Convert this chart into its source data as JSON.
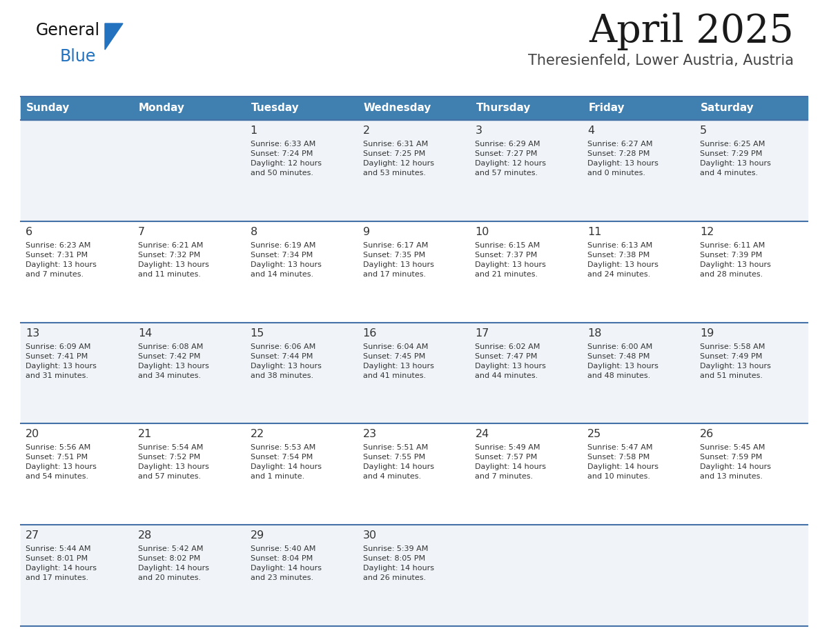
{
  "title": "April 2025",
  "subtitle": "Theresienfeld, Lower Austria, Austria",
  "header_bg": "#4080b0",
  "header_text": "#ffffff",
  "days_of_week": [
    "Sunday",
    "Monday",
    "Tuesday",
    "Wednesday",
    "Thursday",
    "Friday",
    "Saturday"
  ],
  "row_bg_odd": "#f0f4f8",
  "row_bg_even": "#ffffff",
  "divider_color": "#4472a8",
  "text_color": "#333333",
  "logo_triangle_color": "#2272c0",
  "calendar": [
    [
      {
        "day": "",
        "info": ""
      },
      {
        "day": "",
        "info": ""
      },
      {
        "day": "1",
        "info": "Sunrise: 6:33 AM\nSunset: 7:24 PM\nDaylight: 12 hours\nand 50 minutes."
      },
      {
        "day": "2",
        "info": "Sunrise: 6:31 AM\nSunset: 7:25 PM\nDaylight: 12 hours\nand 53 minutes."
      },
      {
        "day": "3",
        "info": "Sunrise: 6:29 AM\nSunset: 7:27 PM\nDaylight: 12 hours\nand 57 minutes."
      },
      {
        "day": "4",
        "info": "Sunrise: 6:27 AM\nSunset: 7:28 PM\nDaylight: 13 hours\nand 0 minutes."
      },
      {
        "day": "5",
        "info": "Sunrise: 6:25 AM\nSunset: 7:29 PM\nDaylight: 13 hours\nand 4 minutes."
      }
    ],
    [
      {
        "day": "6",
        "info": "Sunrise: 6:23 AM\nSunset: 7:31 PM\nDaylight: 13 hours\nand 7 minutes."
      },
      {
        "day": "7",
        "info": "Sunrise: 6:21 AM\nSunset: 7:32 PM\nDaylight: 13 hours\nand 11 minutes."
      },
      {
        "day": "8",
        "info": "Sunrise: 6:19 AM\nSunset: 7:34 PM\nDaylight: 13 hours\nand 14 minutes."
      },
      {
        "day": "9",
        "info": "Sunrise: 6:17 AM\nSunset: 7:35 PM\nDaylight: 13 hours\nand 17 minutes."
      },
      {
        "day": "10",
        "info": "Sunrise: 6:15 AM\nSunset: 7:37 PM\nDaylight: 13 hours\nand 21 minutes."
      },
      {
        "day": "11",
        "info": "Sunrise: 6:13 AM\nSunset: 7:38 PM\nDaylight: 13 hours\nand 24 minutes."
      },
      {
        "day": "12",
        "info": "Sunrise: 6:11 AM\nSunset: 7:39 PM\nDaylight: 13 hours\nand 28 minutes."
      }
    ],
    [
      {
        "day": "13",
        "info": "Sunrise: 6:09 AM\nSunset: 7:41 PM\nDaylight: 13 hours\nand 31 minutes."
      },
      {
        "day": "14",
        "info": "Sunrise: 6:08 AM\nSunset: 7:42 PM\nDaylight: 13 hours\nand 34 minutes."
      },
      {
        "day": "15",
        "info": "Sunrise: 6:06 AM\nSunset: 7:44 PM\nDaylight: 13 hours\nand 38 minutes."
      },
      {
        "day": "16",
        "info": "Sunrise: 6:04 AM\nSunset: 7:45 PM\nDaylight: 13 hours\nand 41 minutes."
      },
      {
        "day": "17",
        "info": "Sunrise: 6:02 AM\nSunset: 7:47 PM\nDaylight: 13 hours\nand 44 minutes."
      },
      {
        "day": "18",
        "info": "Sunrise: 6:00 AM\nSunset: 7:48 PM\nDaylight: 13 hours\nand 48 minutes."
      },
      {
        "day": "19",
        "info": "Sunrise: 5:58 AM\nSunset: 7:49 PM\nDaylight: 13 hours\nand 51 minutes."
      }
    ],
    [
      {
        "day": "20",
        "info": "Sunrise: 5:56 AM\nSunset: 7:51 PM\nDaylight: 13 hours\nand 54 minutes."
      },
      {
        "day": "21",
        "info": "Sunrise: 5:54 AM\nSunset: 7:52 PM\nDaylight: 13 hours\nand 57 minutes."
      },
      {
        "day": "22",
        "info": "Sunrise: 5:53 AM\nSunset: 7:54 PM\nDaylight: 14 hours\nand 1 minute."
      },
      {
        "day": "23",
        "info": "Sunrise: 5:51 AM\nSunset: 7:55 PM\nDaylight: 14 hours\nand 4 minutes."
      },
      {
        "day": "24",
        "info": "Sunrise: 5:49 AM\nSunset: 7:57 PM\nDaylight: 14 hours\nand 7 minutes."
      },
      {
        "day": "25",
        "info": "Sunrise: 5:47 AM\nSunset: 7:58 PM\nDaylight: 14 hours\nand 10 minutes."
      },
      {
        "day": "26",
        "info": "Sunrise: 5:45 AM\nSunset: 7:59 PM\nDaylight: 14 hours\nand 13 minutes."
      }
    ],
    [
      {
        "day": "27",
        "info": "Sunrise: 5:44 AM\nSunset: 8:01 PM\nDaylight: 14 hours\nand 17 minutes."
      },
      {
        "day": "28",
        "info": "Sunrise: 5:42 AM\nSunset: 8:02 PM\nDaylight: 14 hours\nand 20 minutes."
      },
      {
        "day": "29",
        "info": "Sunrise: 5:40 AM\nSunset: 8:04 PM\nDaylight: 14 hours\nand 23 minutes."
      },
      {
        "day": "30",
        "info": "Sunrise: 5:39 AM\nSunset: 8:05 PM\nDaylight: 14 hours\nand 26 minutes."
      },
      {
        "day": "",
        "info": ""
      },
      {
        "day": "",
        "info": ""
      },
      {
        "day": "",
        "info": ""
      }
    ]
  ]
}
